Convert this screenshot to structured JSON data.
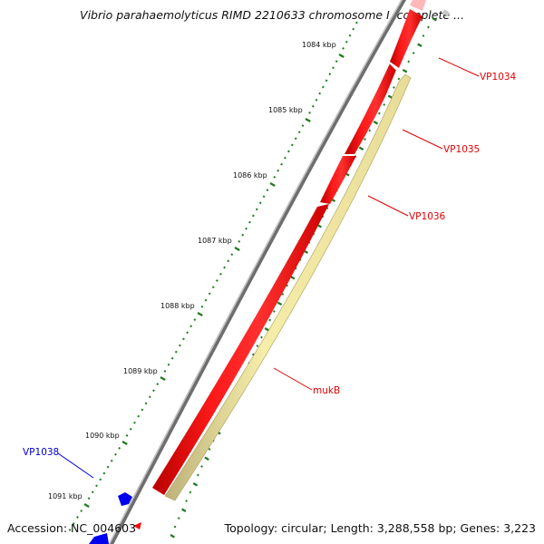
{
  "title": "Vibrio parahaemolyticus RIMD 2210633 chromosome I, complete ...",
  "footer": {
    "accession": "Accession: NC_004603",
    "info": "Topology: circular; Length: 3,288,558 bp; Genes: 3,223"
  },
  "ruler": {
    "unit": "kbp",
    "labels": [
      "1084 kbp",
      "1085 kbp",
      "1086 kbp",
      "1087 kbp",
      "1088 kbp",
      "1089 kbp",
      "1090 kbp",
      "1091 kbp"
    ]
  },
  "colors": {
    "backbone": "#8c8c8c",
    "forward_gene": "#ff0000",
    "reverse_gene": "#0000ff",
    "selected_gene": "#f3e9a3",
    "tick": "#1e7a1e",
    "forward_label": "#e00000",
    "reverse_label": "#0000cc"
  },
  "genes": [
    {
      "label": "VP1034",
      "strand": "forward"
    },
    {
      "label": "VP1035",
      "strand": "forward"
    },
    {
      "label": "VP1036",
      "strand": "forward"
    },
    {
      "label": "mukB",
      "strand": "forward"
    },
    {
      "label": "VP1038",
      "strand": "reverse"
    }
  ]
}
